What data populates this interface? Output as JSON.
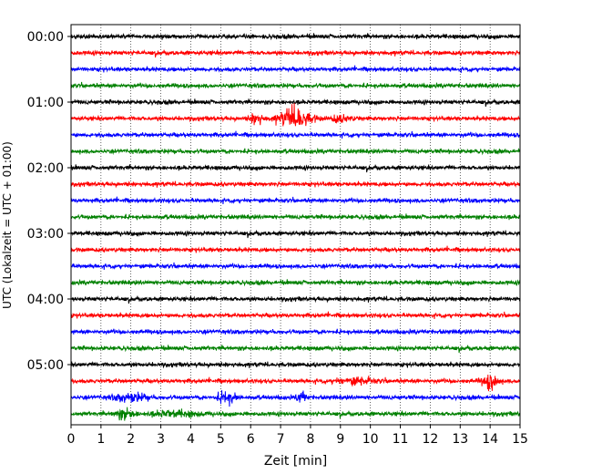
{
  "chart_data": {
    "type": "line",
    "title": "",
    "xlabel": "Zeit  [min]",
    "ylabel": "UTC (Lokalzeit = UTC + 01:00)",
    "xlim": [
      0,
      15
    ],
    "x_ticks": [
      "0",
      "1",
      "2",
      "3",
      "4",
      "5",
      "6",
      "7",
      "8",
      "9",
      "10",
      "11",
      "12",
      "13",
      "14",
      "15"
    ],
    "y_ticks": [
      {
        "label": "00:00",
        "row": 0
      },
      {
        "label": "01:00",
        "row": 4
      },
      {
        "label": "02:00",
        "row": 8
      },
      {
        "label": "03:00",
        "row": 12
      },
      {
        "label": "04:00",
        "row": 16
      },
      {
        "label": "05:00",
        "row": 20
      }
    ],
    "grid": "vertical dotted at each minute",
    "trace_colors": [
      "#000000",
      "#ff0000",
      "#0000ff",
      "#008000"
    ],
    "rows": 24,
    "row_interval_minutes": 15,
    "events": [
      {
        "row": 5,
        "center_min": 7.5,
        "width_min": 1.0,
        "amplitude": 1.0
      },
      {
        "row": 5,
        "center_min": 6.2,
        "width_min": 0.4,
        "amplitude": 0.5
      },
      {
        "row": 5,
        "center_min": 9.0,
        "width_min": 0.7,
        "amplitude": 0.3
      },
      {
        "row": 21,
        "center_min": 14.0,
        "width_min": 0.5,
        "amplitude": 0.7
      },
      {
        "row": 21,
        "center_min": 9.5,
        "width_min": 1.2,
        "amplitude": 0.3
      },
      {
        "row": 22,
        "center_min": 5.2,
        "width_min": 0.6,
        "amplitude": 0.55
      },
      {
        "row": 22,
        "center_min": 2.0,
        "width_min": 1.0,
        "amplitude": 0.4
      },
      {
        "row": 22,
        "center_min": 7.7,
        "width_min": 0.3,
        "amplitude": 0.5
      },
      {
        "row": 23,
        "center_min": 1.8,
        "width_min": 0.6,
        "amplitude": 0.45
      },
      {
        "row": 23,
        "center_min": 3.5,
        "width_min": 1.5,
        "amplitude": 0.25
      }
    ]
  }
}
